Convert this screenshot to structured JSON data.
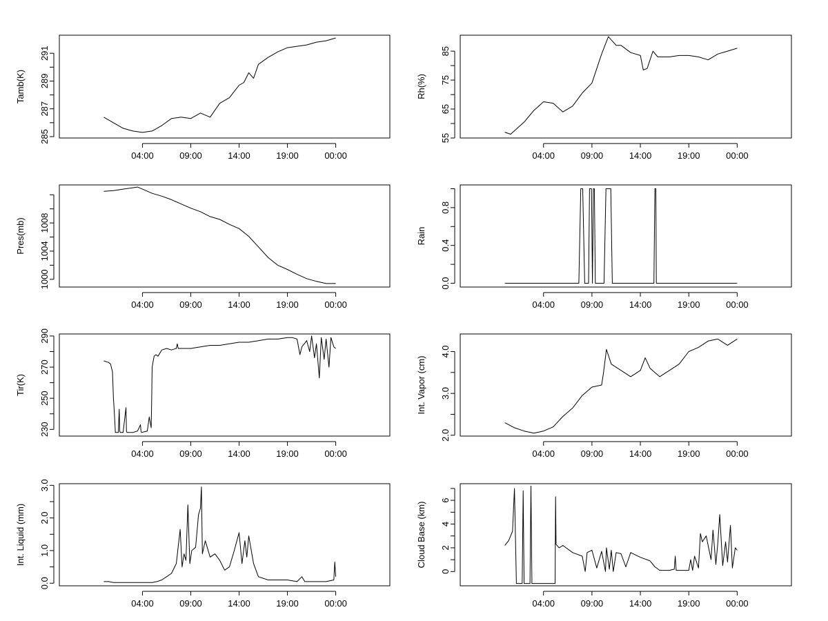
{
  "chart_data": [
    {
      "type": "line",
      "ylabel": "Tamb(K)",
      "ylim": [
        284.9,
        292.3
      ],
      "yticks": [
        285,
        287,
        289,
        291
      ],
      "ytick_labels": [
        "285",
        "287",
        "289",
        "291"
      ],
      "minor_yticks": [
        286,
        288,
        290
      ],
      "xlim": [
        -4.6,
        29.6
      ],
      "xticks": [
        4,
        9,
        14,
        19,
        24
      ],
      "xtick_labels": [
        "04:00",
        "09:00",
        "14:00",
        "19:00",
        "00:00"
      ],
      "series": [
        {
          "x": [
            0,
            1,
            2,
            3,
            4,
            5,
            6,
            7,
            8,
            9,
            10,
            11,
            12,
            13,
            14,
            14.5,
            15,
            15.5,
            16,
            17,
            18,
            19,
            20,
            21,
            22,
            23,
            24
          ],
          "y": [
            286.4,
            286.0,
            285.6,
            285.4,
            285.3,
            285.4,
            285.8,
            286.3,
            286.4,
            286.3,
            286.7,
            286.4,
            287.4,
            287.8,
            288.7,
            288.9,
            289.6,
            289.2,
            290.2,
            290.7,
            291.1,
            291.4,
            291.5,
            291.6,
            291.8,
            291.9,
            292.1
          ]
        }
      ]
    },
    {
      "type": "line",
      "ylabel": "Rh(%)",
      "ylim": [
        55,
        90.5
      ],
      "yticks": [
        55,
        65,
        75,
        85
      ],
      "ytick_labels": [
        "55",
        "65",
        "75",
        "85"
      ],
      "minor_yticks": [
        60,
        70,
        80
      ],
      "xlim": [
        -4.6,
        29.6
      ],
      "xticks": [
        4,
        9,
        14,
        19,
        24
      ],
      "xtick_labels": [
        "04:00",
        "09:00",
        "14:00",
        "19:00",
        "00:00"
      ],
      "series": [
        {
          "x": [
            0,
            0.6,
            1,
            2,
            3,
            4,
            5,
            6,
            7,
            8,
            9,
            10,
            10.7,
            11.5,
            12,
            13,
            14,
            14.3,
            14.7,
            15.3,
            15.8,
            17,
            18,
            19,
            20,
            21,
            22,
            23,
            24
          ],
          "y": [
            57,
            56.3,
            57.5,
            60.5,
            64.5,
            67.5,
            67,
            64,
            66,
            70.5,
            74,
            84,
            90,
            87,
            87,
            84.5,
            83.5,
            78.5,
            79,
            85,
            83,
            83,
            83.5,
            83.5,
            83,
            82,
            84,
            85,
            86
          ]
        }
      ]
    },
    {
      "type": "line",
      "ylabel": "Pres(mb)",
      "ylim": [
        998.9,
        1013.4
      ],
      "yticks": [
        1000,
        1004,
        1008
      ],
      "ytick_labels": [
        "1000",
        "1004",
        "1008"
      ],
      "minor_yticks": [
        1002,
        1006,
        1010,
        1012
      ],
      "xlim": [
        -4.6,
        29.6
      ],
      "xticks": [
        4,
        9,
        14,
        19,
        24
      ],
      "xtick_labels": [
        "04:00",
        "09:00",
        "14:00",
        "19:00",
        "00:00"
      ],
      "series": [
        {
          "x": [
            0,
            1,
            2,
            3,
            3.5,
            4,
            5,
            6,
            7,
            8,
            9,
            10,
            11,
            12,
            13,
            14,
            15,
            16,
            17,
            18,
            19,
            20,
            21,
            22,
            23,
            24
          ],
          "y": [
            1012.5,
            1012.6,
            1012.8,
            1013.0,
            1013.1,
            1012.8,
            1012.2,
            1011.8,
            1011.3,
            1010.7,
            1010.1,
            1009.6,
            1008.9,
            1008.5,
            1007.8,
            1007.2,
            1006.1,
            1004.6,
            1003.1,
            1002.0,
            1001.4,
            1000.7,
            1000.1,
            999.7,
            999.4,
            999.4
          ]
        }
      ]
    },
    {
      "type": "line",
      "ylabel": "Rain",
      "ylim": [
        -0.04,
        1.04
      ],
      "yticks": [
        0.0,
        0.4,
        0.8
      ],
      "ytick_labels": [
        "0.0",
        "0.4",
        "0.8"
      ],
      "minor_yticks": [
        0.2,
        0.6,
        1.0
      ],
      "xlim": [
        -4.6,
        29.6
      ],
      "xticks": [
        4,
        9,
        14,
        19,
        24
      ],
      "xtick_labels": [
        "04:00",
        "09:00",
        "14:00",
        "19:00",
        "00:00"
      ],
      "series": [
        {
          "x": [
            0,
            7.65,
            7.85,
            8.05,
            8.25,
            8.65,
            8.75,
            8.95,
            9.05,
            9.15,
            9.25,
            9.35,
            10.25,
            10.45,
            10.95,
            11.1,
            15.4,
            15.5,
            15.6,
            15.65,
            24
          ],
          "y": [
            0,
            0,
            1,
            1,
            0,
            0,
            1,
            1,
            0,
            1,
            1,
            0,
            0,
            1,
            1,
            0,
            0,
            1,
            1,
            0,
            0
          ]
        }
      ]
    },
    {
      "type": "line",
      "ylabel": "Tir(K)",
      "ylim": [
        225.7,
        291.3
      ],
      "yticks": [
        230,
        250,
        270,
        290
      ],
      "ytick_labels": [
        "230",
        "250",
        "270",
        "290"
      ],
      "minor_yticks": [
        240,
        260,
        280
      ],
      "xlim": [
        -4.6,
        29.6
      ],
      "xticks": [
        4,
        9,
        14,
        19,
        24
      ],
      "xtick_labels": [
        "04:00",
        "09:00",
        "14:00",
        "19:00",
        "00:00"
      ],
      "series": [
        {
          "x": [
            0,
            0.5,
            0.7,
            0.9,
            1,
            1.1,
            1.2,
            1.5,
            1.6,
            1.65,
            1.7,
            2,
            2.3,
            2.35,
            2.4,
            3,
            3.5,
            3.8,
            3.85,
            3.9,
            4.5,
            4.7,
            4.9,
            4.95,
            5,
            5.2,
            5.4,
            5.6,
            5.8,
            6,
            6.5,
            7,
            7.5,
            7.6,
            7.7,
            8,
            9,
            10,
            11,
            12,
            13,
            14,
            15,
            16,
            17,
            18,
            19,
            19.5,
            20,
            20.3,
            20.5,
            21,
            21.3,
            21.5,
            21.8,
            22,
            22.3,
            22.5,
            22.8,
            23,
            23.3,
            23.5,
            23.8,
            24
          ],
          "y": [
            274,
            273,
            272,
            267,
            250,
            240,
            228,
            228,
            243,
            229,
            228,
            228,
            244,
            229,
            228,
            228,
            229,
            233,
            229,
            228,
            229,
            238,
            231,
            248,
            270,
            277,
            278,
            277,
            279,
            281,
            282,
            281,
            282,
            285,
            282,
            282,
            282,
            283,
            284,
            284,
            285,
            286,
            286,
            287,
            288,
            288,
            289,
            289,
            288,
            278,
            283,
            287,
            280,
            290,
            276,
            285,
            263,
            289,
            275,
            288,
            270,
            289,
            283,
            282
          ]
        }
      ]
    },
    {
      "type": "line",
      "ylabel": "Int. Vapor (cm)",
      "ylim": [
        1.98,
        4.42
      ],
      "yticks": [
        2.0,
        3.0,
        4.0
      ],
      "ytick_labels": [
        "2.0",
        "3.0",
        "4.0"
      ],
      "minor_yticks": [
        2.5,
        3.5
      ],
      "xlim": [
        -4.6,
        29.6
      ],
      "xticks": [
        4,
        9,
        14,
        19,
        24
      ],
      "xtick_labels": [
        "04:00",
        "09:00",
        "14:00",
        "19:00",
        "00:00"
      ],
      "series": [
        {
          "x": [
            0,
            1,
            2,
            3,
            4,
            5,
            6,
            7,
            8,
            9,
            10,
            10.2,
            10.5,
            11,
            12,
            13,
            14,
            14.5,
            15,
            16,
            17,
            18,
            19,
            20,
            21,
            22,
            23,
            24
          ],
          "y": [
            2.3,
            2.18,
            2.1,
            2.05,
            2.1,
            2.2,
            2.45,
            2.65,
            2.95,
            3.15,
            3.2,
            3.5,
            4.05,
            3.7,
            3.55,
            3.4,
            3.55,
            3.85,
            3.6,
            3.4,
            3.55,
            3.7,
            4.0,
            4.1,
            4.25,
            4.3,
            4.15,
            4.3
          ]
        }
      ]
    },
    {
      "type": "line",
      "ylabel": "Int. Liquid (mm)",
      "ylim": [
        -0.08,
        3.05
      ],
      "yticks": [
        0.0,
        1.0,
        2.0,
        3.0
      ],
      "ytick_labels": [
        "0.0",
        "1.0",
        "2.0",
        "3.0"
      ],
      "minor_yticks": [
        0.5,
        1.5,
        2.5
      ],
      "xlim": [
        -4.6,
        29.6
      ],
      "xticks": [
        4,
        9,
        14,
        19,
        24
      ],
      "xtick_labels": [
        "04:00",
        "09:00",
        "14:00",
        "19:00",
        "00:00"
      ],
      "series": [
        {
          "x": [
            0,
            0.5,
            1,
            2,
            3,
            4,
            5,
            5.5,
            6,
            6.5,
            7,
            7.5,
            7.9,
            8.1,
            8.3,
            8.5,
            8.7,
            8.9,
            9.1,
            9.5,
            9.8,
            10,
            10.1,
            10.2,
            10.5,
            11,
            11.5,
            12,
            12.5,
            13,
            13.5,
            14,
            14.3,
            14.6,
            14.8,
            15,
            15.5,
            16,
            17,
            18,
            19,
            20,
            20.5,
            20.8,
            21,
            22,
            23,
            23.8,
            23.9,
            24
          ],
          "y": [
            0.05,
            0.05,
            0.02,
            0.02,
            0.02,
            0.02,
            0.02,
            0.05,
            0.1,
            0.2,
            0.3,
            0.6,
            1.65,
            0.5,
            0.9,
            0.7,
            2.4,
            0.6,
            1,
            1.1,
            2.1,
            2.3,
            2.95,
            0.9,
            1.3,
            0.8,
            0.9,
            0.7,
            0.4,
            0.5,
            1.0,
            1.55,
            0.6,
            1.3,
            0.8,
            1.45,
            0.6,
            0.2,
            0.1,
            0.1,
            0.1,
            0.05,
            0.2,
            0.05,
            0.05,
            0.05,
            0.05,
            0.1,
            0.65,
            0.2
          ]
        }
      ]
    },
    {
      "type": "line",
      "ylabel": "Cloud Base (km)",
      "ylim": [
        -1.2,
        7.4
      ],
      "yticks": [
        0,
        2,
        4,
        6
      ],
      "ytick_labels": [
        "0",
        "2",
        "4",
        "6"
      ],
      "minor_yticks": [
        1,
        3,
        5,
        7
      ],
      "xlim": [
        -4.6,
        29.6
      ],
      "xticks": [
        4,
        9,
        14,
        19,
        24
      ],
      "xtick_labels": [
        "04:00",
        "09:00",
        "14:00",
        "19:00",
        "00:00"
      ],
      "series": [
        {
          "x": [
            0,
            0.4,
            0.8,
            1,
            1.1,
            1.2,
            1.8,
            1.9,
            2,
            2.6,
            2.7,
            2.8,
            5.2,
            5.25,
            5.3,
            5.6,
            6,
            7,
            8,
            8.3,
            8.5,
            9,
            9.5,
            10,
            10.4,
            10.5,
            10.8,
            11,
            11.2,
            11.5,
            12,
            12.5,
            13,
            14,
            15,
            15.5,
            16,
            17,
            17.5,
            17.6,
            17.7,
            18,
            19,
            19.2,
            19.4,
            19.6,
            20,
            20.2,
            20.4,
            20.8,
            21,
            21.3,
            21.5,
            21.8,
            22,
            22.2,
            22.5,
            22.8,
            23,
            23.3,
            23.5,
            23.8,
            24
          ],
          "y": [
            2.2,
            2.6,
            3.4,
            7,
            3,
            -1,
            -1,
            6.8,
            -1,
            -1,
            7.2,
            -1,
            -1,
            6.3,
            2.3,
            2,
            2.2,
            1.6,
            1.3,
            0,
            1.6,
            1.8,
            0.3,
            1.7,
            0,
            2,
            0.2,
            1.8,
            0,
            1.6,
            1.5,
            0.4,
            1.6,
            1.2,
            0.9,
            0.4,
            0.1,
            0.1,
            0.2,
            1.3,
            0.1,
            0.1,
            0.1,
            1,
            0.1,
            1.3,
            0.3,
            3.2,
            2.5,
            3,
            2.2,
            1,
            3.5,
            0.6,
            2.4,
            4.8,
            0.5,
            2.5,
            0.8,
            3.9,
            0.3,
            2,
            1.8
          ]
        }
      ]
    }
  ]
}
